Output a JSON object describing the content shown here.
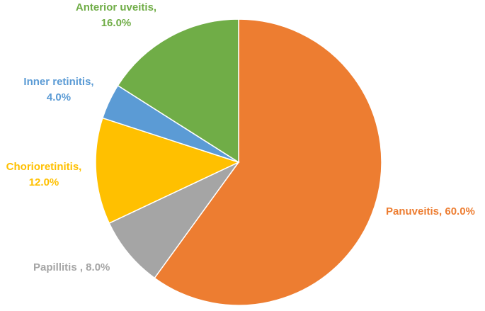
{
  "chart_data": {
    "type": "pie",
    "title": "",
    "start_angle_deg": 0,
    "direction": "clockwise",
    "slices": [
      {
        "name": "Panuveitis",
        "value": 60.0,
        "label_lines": [
          "Panuveitis, 60.0%"
        ],
        "color": "#ED7D31",
        "label_color": "#ED7D31"
      },
      {
        "name": "Papillitis",
        "value": 8.0,
        "label_lines": [
          "Papillitis , 8.0%"
        ],
        "color": "#A5A5A5",
        "label_color": "#A5A5A5"
      },
      {
        "name": "Chorioretinitis",
        "value": 12.0,
        "label_lines": [
          "Chorioretinitis,",
          "12.0%"
        ],
        "color": "#FFC000",
        "label_color": "#FFC000"
      },
      {
        "name": "Inner retinitis",
        "value": 4.0,
        "label_lines": [
          "Inner retinitis,",
          "4.0%"
        ],
        "color": "#5B9BD5",
        "label_color": "#5B9BD5"
      },
      {
        "name": "Anterior uveitis",
        "value": 16.0,
        "label_lines": [
          "Anterior uveitis,",
          "16.0%"
        ],
        "color": "#70AD47",
        "label_color": "#70AD47"
      }
    ]
  }
}
